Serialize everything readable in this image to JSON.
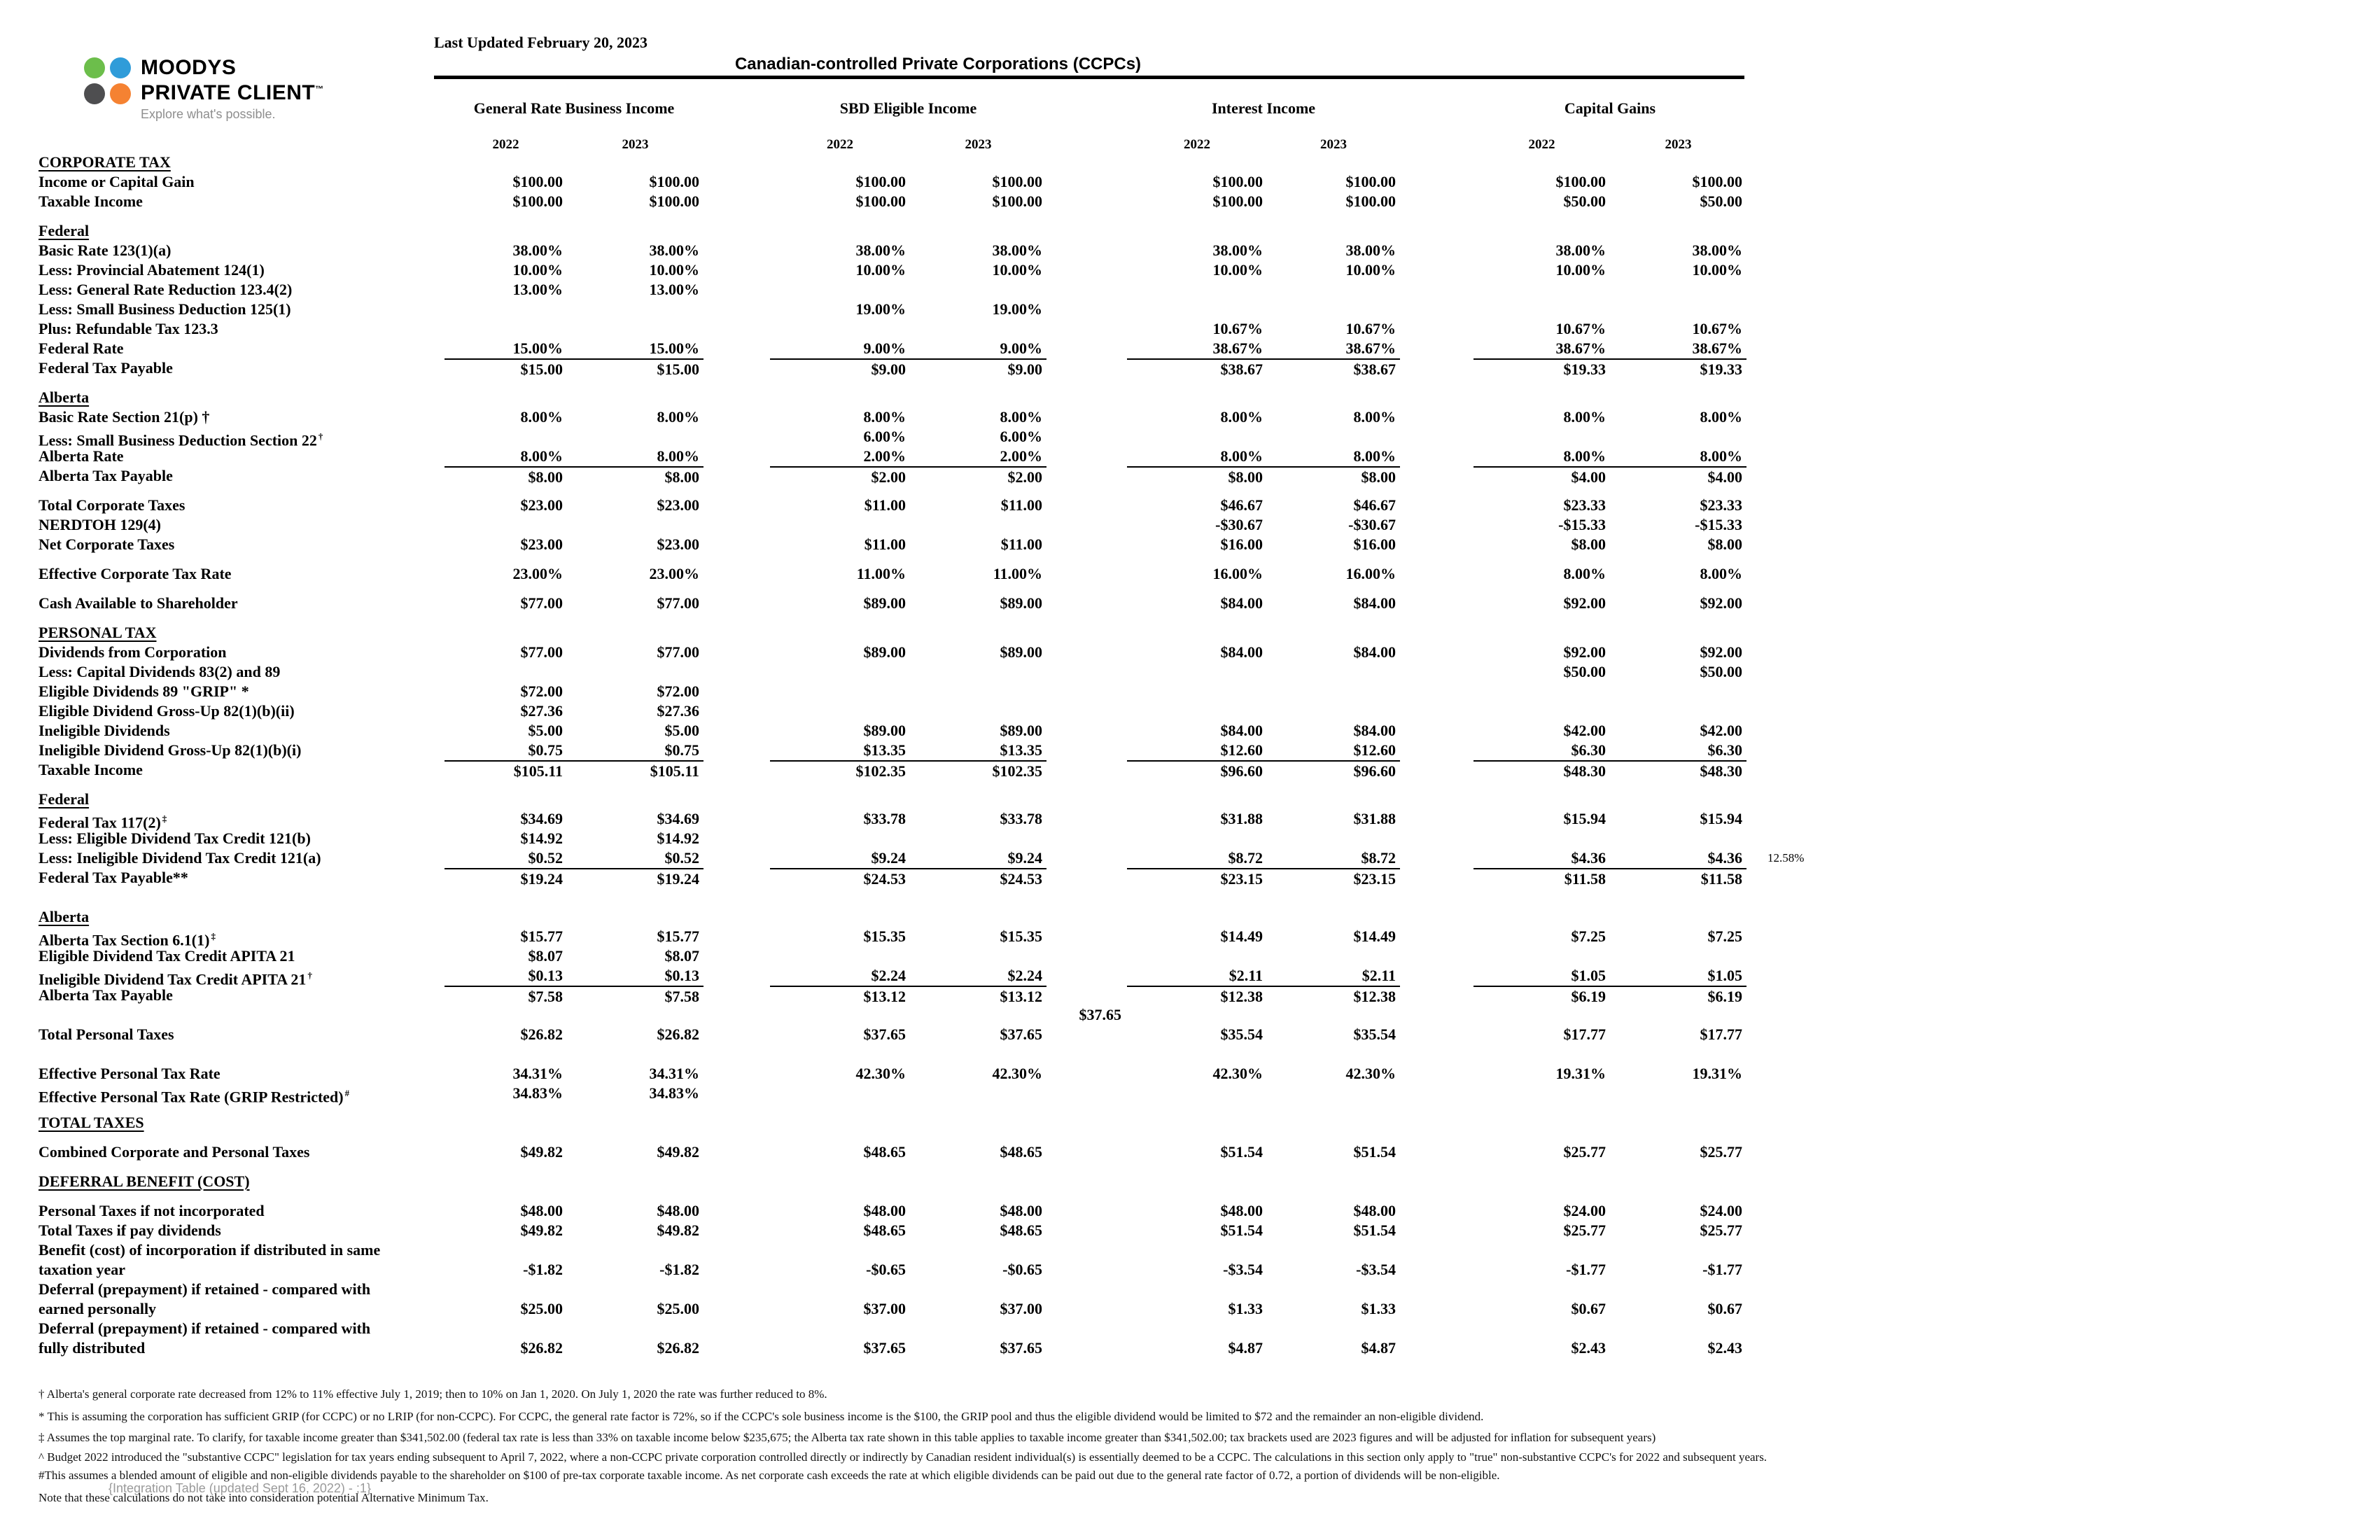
{
  "document": {
    "last_updated": "Last Updated February 20, 2023",
    "title": "Canadian-controlled Private Corporations (CCPCs)"
  },
  "logo": {
    "line1": "MOODYS",
    "line2": "PRIVATE CLIENT",
    "tm": "™",
    "tagline": "Explore what's possible.",
    "colors": {
      "green": "#6cbe4b",
      "blue": "#2f9cd9",
      "gray": "#4e4e50",
      "orange": "#f58232"
    }
  },
  "column_groups": [
    {
      "label": "General Rate Business Income",
      "years": [
        "2022",
        "2023"
      ]
    },
    {
      "label": "SBD Eligible Income",
      "years": [
        "2022",
        "2023"
      ]
    },
    {
      "label": "Interest Income",
      "years": [
        "2022",
        "2023"
      ]
    },
    {
      "label": "Capital Gains",
      "years": [
        "2022",
        "2023"
      ]
    }
  ],
  "table": {
    "rows": [
      {
        "t": "section",
        "label": "CORPORATE TAX"
      },
      {
        "t": "row",
        "label": "Income or Capital Gain",
        "v": [
          "$100.00",
          "$100.00",
          "$100.00",
          "$100.00",
          "$100.00",
          "$100.00",
          "$100.00",
          "$100.00"
        ]
      },
      {
        "t": "row",
        "label": "Taxable Income",
        "v": [
          "$100.00",
          "$100.00",
          "$100.00",
          "$100.00",
          "$100.00",
          "$100.00",
          "$50.00",
          "$50.00"
        ]
      },
      {
        "t": "gap",
        "h": 14
      },
      {
        "t": "sub",
        "label": "Federal"
      },
      {
        "t": "row",
        "label": "Basic Rate 123(1)(a)",
        "v": [
          "38.00%",
          "38.00%",
          "38.00%",
          "38.00%",
          "38.00%",
          "38.00%",
          "38.00%",
          "38.00%"
        ]
      },
      {
        "t": "row",
        "label": "Less: Provincial Abatement 124(1)",
        "v": [
          "10.00%",
          "10.00%",
          "10.00%",
          "10.00%",
          "10.00%",
          "10.00%",
          "10.00%",
          "10.00%"
        ]
      },
      {
        "t": "row",
        "label": "Less: General Rate Reduction 123.4(2)",
        "v": [
          "13.00%",
          "13.00%",
          "",
          "",
          "",
          "",
          "",
          ""
        ]
      },
      {
        "t": "row",
        "label": "Less: Small Business Deduction 125(1)",
        "v": [
          "",
          "",
          "19.00%",
          "19.00%",
          "",
          "",
          "",
          ""
        ]
      },
      {
        "t": "row",
        "label": "Plus: Refundable Tax 123.3",
        "v": [
          "",
          "",
          "",
          "",
          "10.67%",
          "10.67%",
          "10.67%",
          "10.67%"
        ]
      },
      {
        "t": "row",
        "label": "Federal Rate",
        "v": [
          "15.00%",
          "15.00%",
          "9.00%",
          "9.00%",
          "38.67%",
          "38.67%",
          "38.67%",
          "38.67%"
        ]
      },
      {
        "t": "row",
        "label": "Federal Tax Payable",
        "line": true,
        "v": [
          "$15.00",
          "$15.00",
          "$9.00",
          "$9.00",
          "$38.67",
          "$38.67",
          "$19.33",
          "$19.33"
        ]
      },
      {
        "t": "gap",
        "h": 14
      },
      {
        "t": "sub",
        "label": "Alberta"
      },
      {
        "t": "row",
        "label": "Basic Rate Section 21(p) †",
        "v": [
          "8.00%",
          "8.00%",
          "8.00%",
          "8.00%",
          "8.00%",
          "8.00%",
          "8.00%",
          "8.00%"
        ]
      },
      {
        "t": "row",
        "label": "Less: Small Business Deduction Section 22",
        "sup": "†",
        "v": [
          "",
          "",
          "6.00%",
          "6.00%",
          "",
          "",
          "",
          ""
        ]
      },
      {
        "t": "row",
        "label": "Alberta Rate",
        "v": [
          "8.00%",
          "8.00%",
          "2.00%",
          "2.00%",
          "8.00%",
          "8.00%",
          "8.00%",
          "8.00%"
        ]
      },
      {
        "t": "row",
        "label": "Alberta Tax Payable",
        "line": true,
        "v": [
          "$8.00",
          "$8.00",
          "$2.00",
          "$2.00",
          "$8.00",
          "$8.00",
          "$4.00",
          "$4.00"
        ]
      },
      {
        "t": "gap",
        "h": 14
      },
      {
        "t": "row",
        "label": "Total Corporate Taxes",
        "v": [
          "$23.00",
          "$23.00",
          "$11.00",
          "$11.00",
          "$46.67",
          "$46.67",
          "$23.33",
          "$23.33"
        ]
      },
      {
        "t": "row",
        "label": "NERDTOH 129(4)",
        "v": [
          "",
          "",
          "",
          "",
          "-$30.67",
          "-$30.67",
          "-$15.33",
          "-$15.33"
        ]
      },
      {
        "t": "row",
        "label": "Net Corporate Taxes",
        "v": [
          "$23.00",
          "$23.00",
          "$11.00",
          "$11.00",
          "$16.00",
          "$16.00",
          "$8.00",
          "$8.00"
        ]
      },
      {
        "t": "gap",
        "h": 14
      },
      {
        "t": "row",
        "label": "Effective Corporate Tax Rate",
        "v": [
          "23.00%",
          "23.00%",
          "11.00%",
          "11.00%",
          "16.00%",
          "16.00%",
          "8.00%",
          "8.00%"
        ]
      },
      {
        "t": "gap",
        "h": 14
      },
      {
        "t": "row",
        "label": "Cash Available to Shareholder",
        "v": [
          "$77.00",
          "$77.00",
          "$89.00",
          "$89.00",
          "$84.00",
          "$84.00",
          "$92.00",
          "$92.00"
        ]
      },
      {
        "t": "gap",
        "h": 14
      },
      {
        "t": "section",
        "label": "PERSONAL TAX"
      },
      {
        "t": "row",
        "label": "Dividends from Corporation",
        "v": [
          "$77.00",
          "$77.00",
          "$89.00",
          "$89.00",
          "$84.00",
          "$84.00",
          "$92.00",
          "$92.00"
        ]
      },
      {
        "t": "row",
        "label": "Less: Capital Dividends 83(2) and 89",
        "v": [
          "",
          "",
          "",
          "",
          "",
          "",
          "$50.00",
          "$50.00"
        ]
      },
      {
        "t": "row",
        "label": "Eligible Dividends 89 \"GRIP\" *",
        "v": [
          "$72.00",
          "$72.00",
          "",
          "",
          "",
          "",
          "",
          ""
        ]
      },
      {
        "t": "row",
        "label": "Eligible Dividend Gross-Up 82(1)(b)(ii)",
        "v": [
          "$27.36",
          "$27.36",
          "",
          "",
          "",
          "",
          "",
          ""
        ]
      },
      {
        "t": "row",
        "label": "Ineligible Dividends",
        "v": [
          "$5.00",
          "$5.00",
          "$89.00",
          "$89.00",
          "$84.00",
          "$84.00",
          "$42.00",
          "$42.00"
        ]
      },
      {
        "t": "row",
        "label": "Ineligible Dividend Gross-Up 82(1)(b)(i)",
        "v": [
          "$0.75",
          "$0.75",
          "$13.35",
          "$13.35",
          "$12.60",
          "$12.60",
          "$6.30",
          "$6.30"
        ]
      },
      {
        "t": "row",
        "label": "Taxable Income",
        "line": true,
        "v": [
          "$105.11",
          "$105.11",
          "$102.35",
          "$102.35",
          "$96.60",
          "$96.60",
          "$48.30",
          "$48.30"
        ]
      },
      {
        "t": "gap",
        "h": 14
      },
      {
        "t": "sub",
        "label": "Federal "
      },
      {
        "t": "row",
        "label": "Federal Tax 117(2)",
        "sup": "‡",
        "v": [
          "$34.69",
          "$34.69",
          "$33.78",
          "$33.78",
          "$31.88",
          "$31.88",
          "$15.94",
          "$15.94"
        ]
      },
      {
        "t": "row",
        "label": "Less: Eligible Dividend Tax Credit 121(b)",
        "v": [
          "$14.92",
          "$14.92",
          "",
          "",
          "",
          "",
          "",
          ""
        ]
      },
      {
        "t": "row",
        "label": "Less: Ineligible Dividend Tax Credit 121(a)",
        "extra": "12.58%",
        "v": [
          "$0.52",
          "$0.52",
          "$9.24",
          "$9.24",
          "$8.72",
          "$8.72",
          "$4.36",
          "$4.36"
        ]
      },
      {
        "t": "row",
        "label": "Federal Tax Payable**",
        "line": true,
        "v": [
          "$19.24",
          "$19.24",
          "$24.53",
          "$24.53",
          "$23.15",
          "$23.15",
          "$11.58",
          "$11.58"
        ]
      },
      {
        "t": "gap",
        "h": 28
      },
      {
        "t": "sub",
        "label": "Alberta"
      },
      {
        "t": "row",
        "label": "Alberta Tax Section 6.1(1)",
        "sup": "‡",
        "v": [
          "$15.77",
          "$15.77",
          "$15.35",
          "$15.35",
          "$14.49",
          "$14.49",
          "$7.25",
          "$7.25"
        ]
      },
      {
        "t": "row",
        "label": "Eligible Dividend Tax Credit APITA 21",
        "v": [
          "$8.07",
          "$8.07",
          "",
          "",
          "",
          "",
          "",
          ""
        ]
      },
      {
        "t": "row",
        "label": "Ineligible Dividend Tax Credit APITA 21",
        "sup": "†",
        "v": [
          "$0.13",
          "$0.13",
          "$2.24",
          "$2.24",
          "$2.11",
          "$2.11",
          "$1.05",
          "$1.05"
        ]
      },
      {
        "t": "row",
        "label": "Alberta Tax Payable",
        "line": true,
        "v": [
          "$7.58",
          "$7.58",
          "$13.12",
          "$13.12",
          "$12.38",
          "$12.38",
          "$6.19",
          "$6.19"
        ]
      },
      {
        "t": "row",
        "label": "",
        "mid": "$37.65",
        "v": [
          "",
          "",
          "",
          "",
          "",
          "",
          "",
          ""
        ]
      },
      {
        "t": "row",
        "label": "Total Personal Taxes",
        "v": [
          "$26.82",
          "$26.82",
          "$37.65",
          "$37.65",
          "$35.54",
          "$35.54",
          "$17.77",
          "$17.77"
        ]
      },
      {
        "t": "gap",
        "h": 28
      },
      {
        "t": "row",
        "label": "Effective Personal Tax Rate",
        "v": [
          "34.31%",
          "34.31%",
          "42.30%",
          "42.30%",
          "42.30%",
          "42.30%",
          "19.31%",
          "19.31%"
        ]
      },
      {
        "t": "row",
        "label": "Effective Personal Tax Rate (GRIP Restricted)",
        "sup": "#",
        "v": [
          "34.83%",
          "34.83%",
          "",
          "",
          "",
          "",
          "",
          ""
        ]
      },
      {
        "t": "gap",
        "h": 14
      },
      {
        "t": "section",
        "label": "TOTAL TAXES"
      },
      {
        "t": "gap",
        "h": 14
      },
      {
        "t": "row",
        "label": "Combined Corporate and Personal Taxes",
        "v": [
          "$49.82",
          "$49.82",
          "$48.65",
          "$48.65",
          "$51.54",
          "$51.54",
          "$25.77",
          "$25.77"
        ]
      },
      {
        "t": "gap",
        "h": 14
      },
      {
        "t": "section",
        "label": "DEFERRAL BENEFIT (COST)"
      },
      {
        "t": "gap",
        "h": 14
      },
      {
        "t": "row",
        "label": "Personal Taxes if not incorporated",
        "v": [
          "$48.00",
          "$48.00",
          "$48.00",
          "$48.00",
          "$48.00",
          "$48.00",
          "$24.00",
          "$24.00"
        ]
      },
      {
        "t": "row",
        "label": "Total Taxes if pay dividends",
        "v": [
          "$49.82",
          "$49.82",
          "$48.65",
          "$48.65",
          "$51.54",
          "$51.54",
          "$25.77",
          "$25.77"
        ]
      },
      {
        "t": "rowlabel",
        "label": "Benefit (cost) of incorporation if distributed in same"
      },
      {
        "t": "row",
        "label": "taxation year",
        "v": [
          "-$1.82",
          "-$1.82",
          "-$0.65",
          "-$0.65",
          "-$3.54",
          "-$3.54",
          "-$1.77",
          "-$1.77"
        ]
      },
      {
        "t": "rowlabel",
        "label": "Deferral (prepayment) if retained - compared with"
      },
      {
        "t": "row",
        "label": "earned personally",
        "v": [
          "$25.00",
          "$25.00",
          "$37.00",
          "$37.00",
          "$1.33",
          "$1.33",
          "$0.67",
          "$0.67"
        ]
      },
      {
        "t": "rowlabel",
        "label": "Deferral (prepayment) if retained - compared with"
      },
      {
        "t": "row",
        "label": "fully distributed",
        "v": [
          "$26.82",
          "$26.82",
          "$37.65",
          "$37.65",
          "$4.87",
          "$4.87",
          "$2.43",
          "$2.43"
        ]
      }
    ]
  },
  "footnotes": [
    "† Alberta's general corporate rate decreased from 12% to 11% effective July 1, 2019; then to 10% on Jan 1, 2020. On July 1, 2020 the rate was further reduced to 8%.",
    "* This is assuming  the corporation has sufficient GRIP (for CCPC) or no LRIP (for non-CCPC). For CCPC, the general rate factor is 72%, so if the CCPC's sole business income is the $100, the GRIP pool and thus the eligible dividend would be limited to $72 and the remainder an non-eligible dividend.",
    "‡ Assumes the top marginal rate. To clarify, for taxable income greater than $341,502.00 (federal tax rate is less than 33% on taxable income below $235,675; the Alberta tax rate shown in this table applies to taxable income greater than $341,502.00; tax brackets used are 2023 figures and will be adjusted for inflation for subsequent years)",
    "^ Budget 2022 introduced the \"substantive CCPC\" legislation for tax years ending subsequent to April 7, 2022, where a non-CCPC private corporation controlled directly or indirectly by Canadian resident individual(s) is essentially deemed to be a CCPC. The calculations in this section only apply to \"true\" non-substantive CCPC's for 2022 and subsequent years.",
    "#This assumes a blended amount of eligible and non-eligible dividends payable to the shareholder on $100 of pre-tax corporate taxable income.  As net corporate cash exceeds the rate at which eligible dividends can be paid out due to the general rate factor of 0.72, a portion of dividends will be non-eligible."
  ],
  "integration_note": "{Integration Table (updated Sept 16, 2022) - ;1}",
  "amt_note": "Note that these calculations do not take into consideration potential Alternative Minimum Tax."
}
